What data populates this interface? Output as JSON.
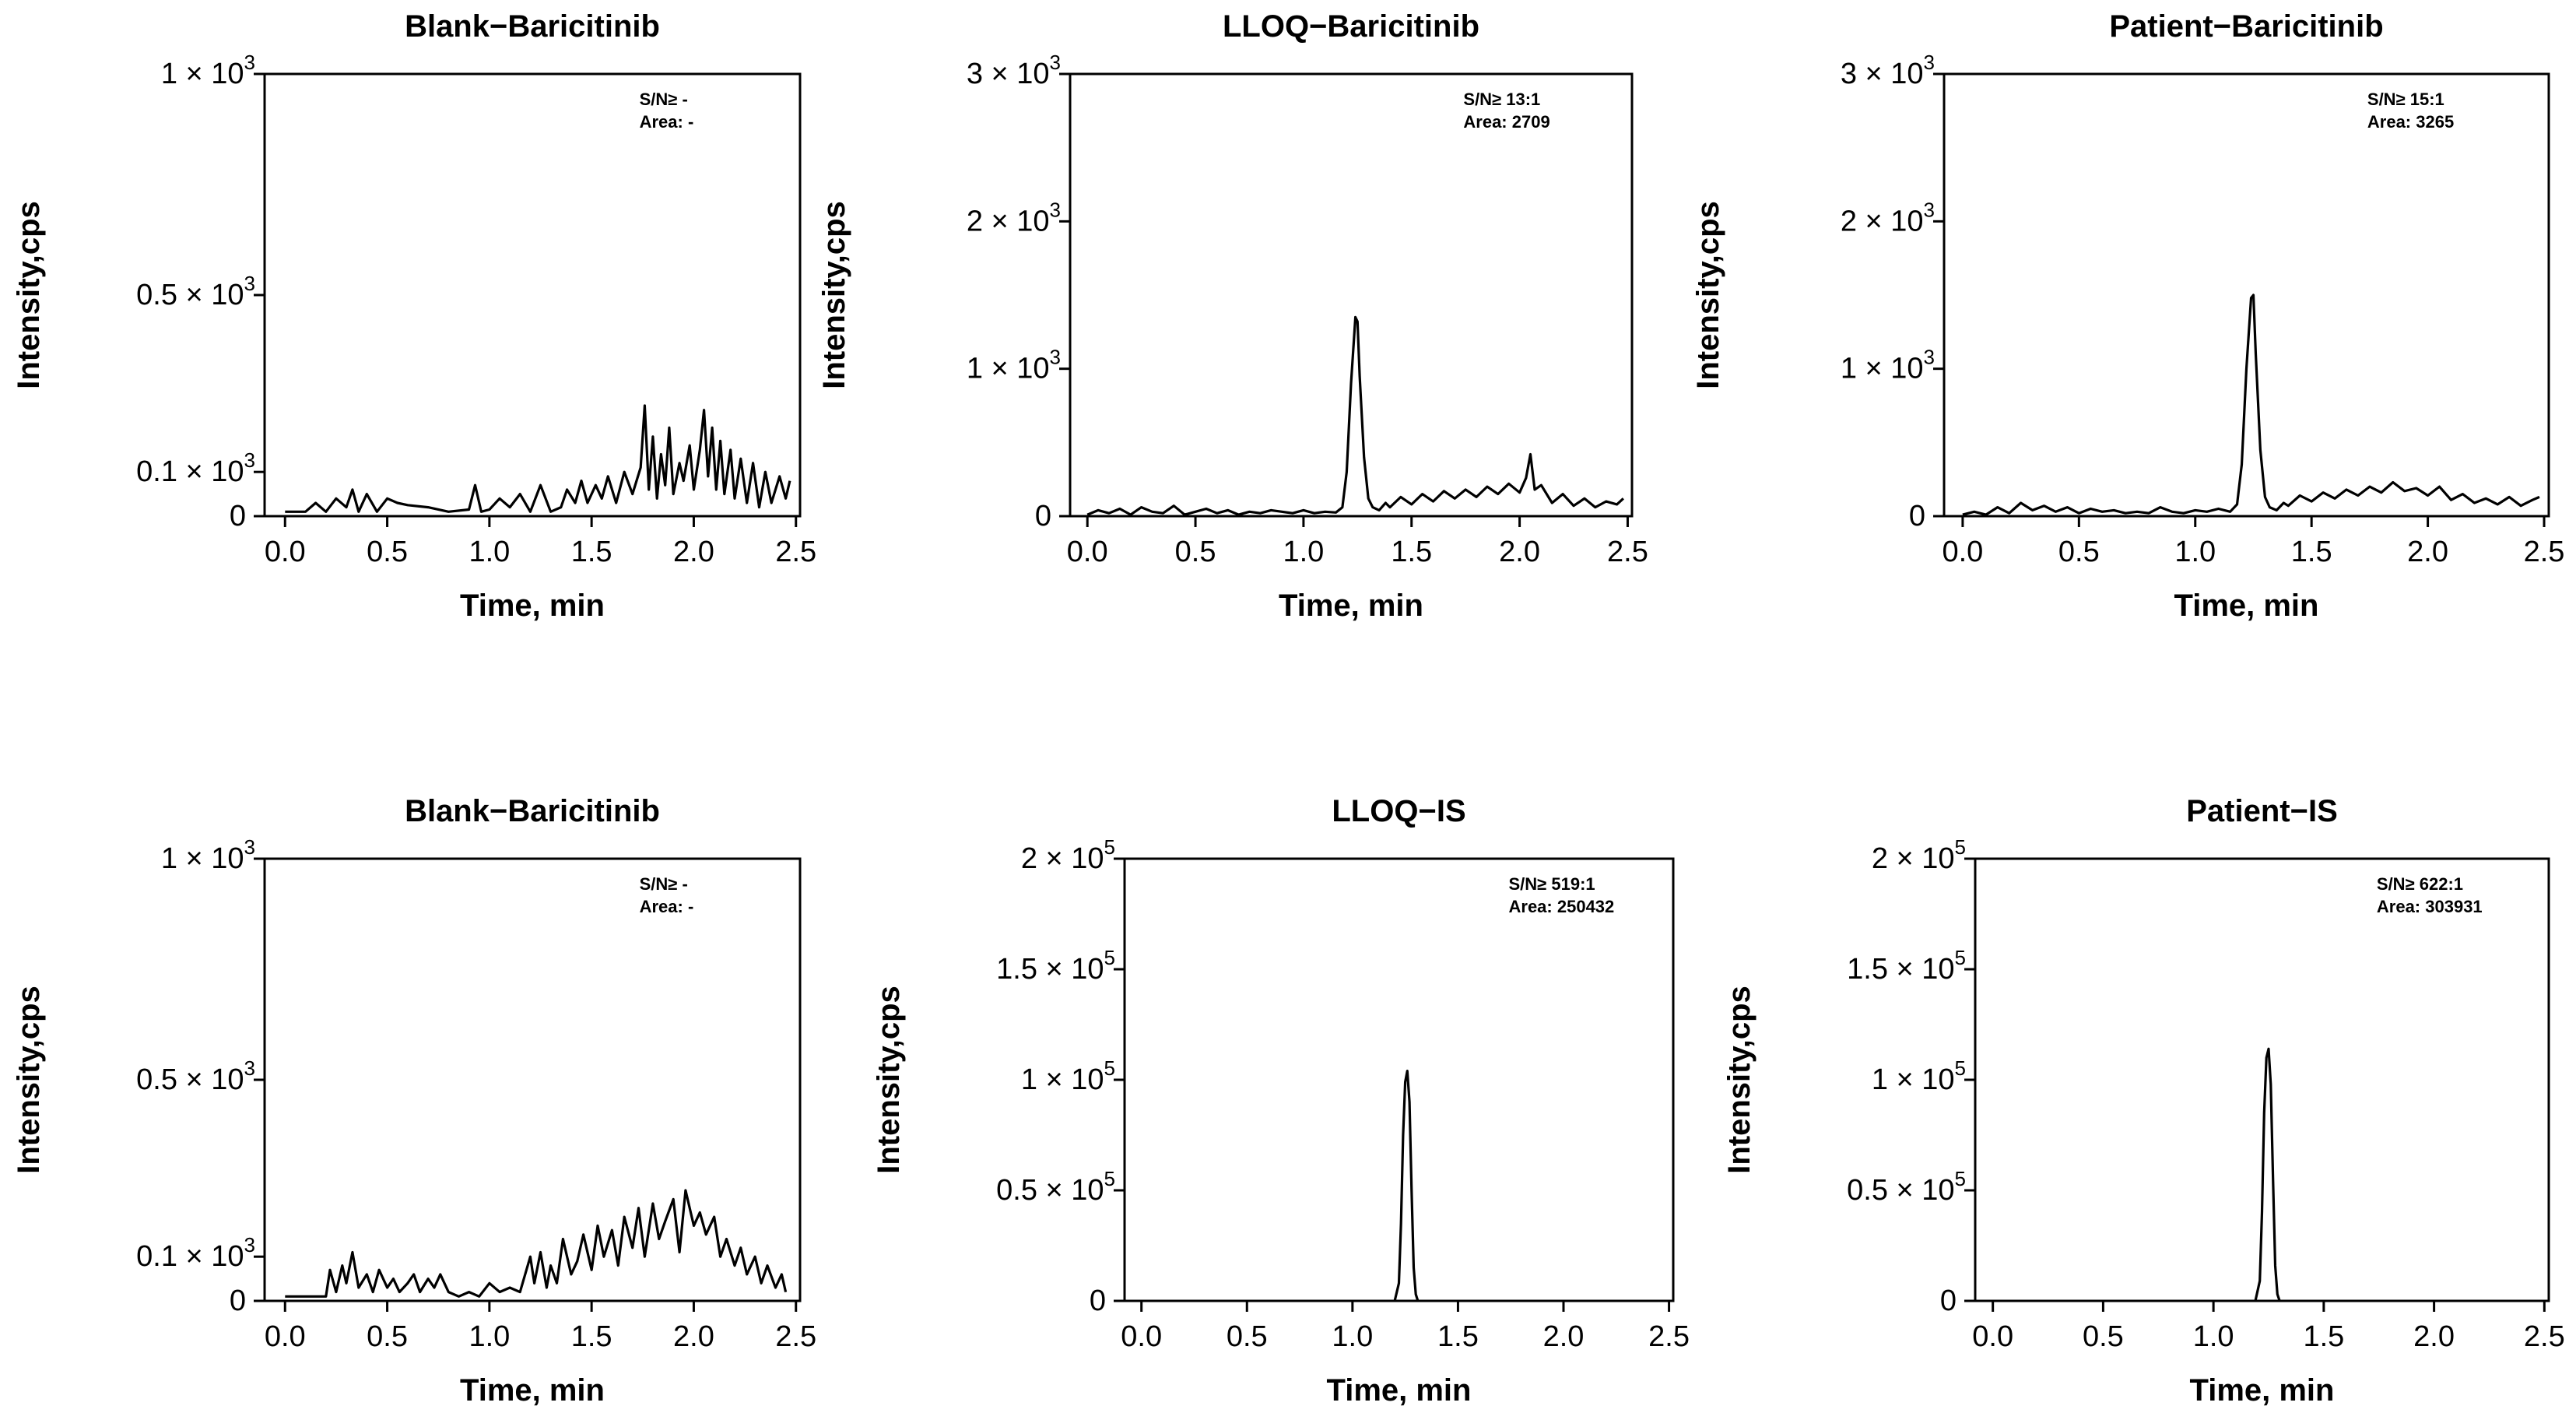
{
  "chart_data": [
    {
      "type": "line",
      "title": "Blank−Baricitinib",
      "xlabel": "Time, min",
      "ylabel": "Intensity,cps",
      "xlim": [
        -0.1,
        2.52
      ],
      "ylim": [
        0,
        1000
      ],
      "xticks": [
        {
          "value": 0.0,
          "label": "0.0"
        },
        {
          "value": 0.5,
          "label": "0.5"
        },
        {
          "value": 1.0,
          "label": "1.0"
        },
        {
          "value": 1.5,
          "label": "1.5"
        },
        {
          "value": 2.0,
          "label": "2.0"
        },
        {
          "value": 2.5,
          "label": "2.5"
        }
      ],
      "yticks": [
        {
          "value": 0,
          "mant": "0",
          "exp": ""
        },
        {
          "value": 100,
          "mant": "0.1 × 10",
          "exp": "3"
        },
        {
          "value": 500,
          "mant": "0.5 × 10",
          "exp": "3"
        },
        {
          "value": 1000,
          "mant": "1 × 10",
          "exp": "3"
        }
      ],
      "annotations": [
        "S/N≥ -",
        "Area: -"
      ],
      "series": [
        {
          "x": [
            0.0,
            0.1,
            0.15,
            0.2,
            0.25,
            0.3,
            0.33,
            0.36,
            0.4,
            0.45,
            0.5,
            0.55,
            0.6,
            0.7,
            0.8,
            0.9,
            0.93,
            0.96,
            1.0,
            1.05,
            1.1,
            1.15,
            1.2,
            1.25,
            1.3,
            1.35,
            1.38,
            1.42,
            1.45,
            1.48,
            1.52,
            1.55,
            1.58,
            1.62,
            1.66,
            1.7,
            1.74,
            1.76,
            1.78,
            1.8,
            1.82,
            1.84,
            1.86,
            1.88,
            1.9,
            1.93,
            1.95,
            1.98,
            2.0,
            2.03,
            2.05,
            2.07,
            2.09,
            2.11,
            2.13,
            2.15,
            2.18,
            2.2,
            2.23,
            2.26,
            2.29,
            2.32,
            2.35,
            2.38,
            2.42,
            2.45,
            2.47
          ],
          "y": [
            10,
            10,
            30,
            10,
            40,
            20,
            60,
            10,
            50,
            10,
            40,
            30,
            25,
            20,
            10,
            15,
            70,
            10,
            15,
            40,
            20,
            50,
            10,
            70,
            10,
            20,
            60,
            30,
            80,
            30,
            70,
            40,
            90,
            30,
            100,
            50,
            110,
            250,
            60,
            180,
            40,
            140,
            70,
            200,
            50,
            120,
            80,
            160,
            60,
            150,
            240,
            90,
            200,
            60,
            170,
            50,
            150,
            40,
            130,
            30,
            120,
            20,
            100,
            30,
            90,
            40,
            80
          ]
        }
      ]
    },
    {
      "type": "line",
      "title": "LLOQ−Baricitinib",
      "xlabel": "Time, min",
      "ylabel": "Intensity,cps",
      "xlim": [
        -0.08,
        2.52
      ],
      "ylim": [
        0,
        3000
      ],
      "xticks": [
        {
          "value": 0.0,
          "label": "0.0"
        },
        {
          "value": 0.5,
          "label": "0.5"
        },
        {
          "value": 1.0,
          "label": "1.0"
        },
        {
          "value": 1.5,
          "label": "1.5"
        },
        {
          "value": 2.0,
          "label": "2.0"
        },
        {
          "value": 2.5,
          "label": "2.5"
        }
      ],
      "yticks": [
        {
          "value": 0,
          "mant": "0",
          "exp": ""
        },
        {
          "value": 1000,
          "mant": "1 × 10",
          "exp": "3"
        },
        {
          "value": 2000,
          "mant": "2 × 10",
          "exp": "3"
        },
        {
          "value": 3000,
          "mant": "3 × 10",
          "exp": "3"
        }
      ],
      "annotations": [
        "S/N≥ 13:1",
        "Area: 2709"
      ],
      "series": [
        {
          "x": [
            0.0,
            0.05,
            0.1,
            0.15,
            0.2,
            0.25,
            0.3,
            0.35,
            0.4,
            0.45,
            0.5,
            0.55,
            0.6,
            0.65,
            0.7,
            0.75,
            0.8,
            0.85,
            0.9,
            0.95,
            1.0,
            1.05,
            1.1,
            1.15,
            1.18,
            1.2,
            1.22,
            1.24,
            1.25,
            1.26,
            1.28,
            1.3,
            1.32,
            1.35,
            1.38,
            1.4,
            1.45,
            1.5,
            1.55,
            1.6,
            1.65,
            1.7,
            1.75,
            1.8,
            1.85,
            1.9,
            1.95,
            2.0,
            2.03,
            2.05,
            2.07,
            2.1,
            2.15,
            2.2,
            2.25,
            2.3,
            2.35,
            2.4,
            2.45,
            2.48
          ],
          "y": [
            10,
            40,
            20,
            50,
            10,
            60,
            30,
            20,
            70,
            10,
            30,
            50,
            20,
            40,
            10,
            30,
            20,
            40,
            30,
            20,
            40,
            20,
            30,
            25,
            60,
            300,
            900,
            1350,
            1320,
            950,
            400,
            120,
            60,
            40,
            90,
            60,
            130,
            80,
            150,
            100,
            170,
            120,
            180,
            130,
            200,
            150,
            220,
            160,
            260,
            420,
            180,
            210,
            90,
            150,
            70,
            120,
            60,
            100,
            80,
            120
          ]
        }
      ]
    },
    {
      "type": "line",
      "title": "Patient−Baricitinib",
      "xlabel": "Time, min",
      "ylabel": "Intensity,cps",
      "xlim": [
        -0.08,
        2.52
      ],
      "ylim": [
        0,
        3000
      ],
      "xticks": [
        {
          "value": 0.0,
          "label": "0.0"
        },
        {
          "value": 0.5,
          "label": "0.5"
        },
        {
          "value": 1.0,
          "label": "1.0"
        },
        {
          "value": 1.5,
          "label": "1.5"
        },
        {
          "value": 2.0,
          "label": "2.0"
        },
        {
          "value": 2.5,
          "label": "2.5"
        }
      ],
      "yticks": [
        {
          "value": 0,
          "mant": "0",
          "exp": ""
        },
        {
          "value": 1000,
          "mant": "1 × 10",
          "exp": "3"
        },
        {
          "value": 2000,
          "mant": "2 × 10",
          "exp": "3"
        },
        {
          "value": 3000,
          "mant": "3 × 10",
          "exp": "3"
        }
      ],
      "annotations": [
        "S/N≥ 15:1",
        "Area: 3265"
      ],
      "series": [
        {
          "x": [
            0.0,
            0.05,
            0.1,
            0.15,
            0.2,
            0.25,
            0.3,
            0.35,
            0.4,
            0.45,
            0.5,
            0.55,
            0.6,
            0.65,
            0.7,
            0.75,
            0.8,
            0.85,
            0.9,
            0.95,
            1.0,
            1.05,
            1.1,
            1.15,
            1.18,
            1.2,
            1.22,
            1.24,
            1.25,
            1.26,
            1.28,
            1.3,
            1.32,
            1.35,
            1.38,
            1.4,
            1.45,
            1.5,
            1.55,
            1.6,
            1.65,
            1.7,
            1.75,
            1.8,
            1.85,
            1.9,
            1.95,
            2.0,
            2.05,
            2.1,
            2.15,
            2.2,
            2.25,
            2.3,
            2.35,
            2.4,
            2.45,
            2.48
          ],
          "y": [
            10,
            30,
            10,
            60,
            20,
            90,
            40,
            70,
            30,
            60,
            20,
            50,
            30,
            40,
            20,
            30,
            20,
            60,
            30,
            20,
            40,
            30,
            50,
            30,
            80,
            350,
            1000,
            1480,
            1500,
            1100,
            450,
            130,
            60,
            40,
            90,
            70,
            140,
            100,
            160,
            120,
            180,
            140,
            200,
            160,
            230,
            170,
            190,
            140,
            200,
            110,
            150,
            90,
            120,
            80,
            130,
            70,
            110,
            130
          ]
        }
      ]
    },
    {
      "type": "line",
      "title": "Blank−Baricitinib",
      "xlabel": "Time, min",
      "ylabel": "Intensity,cps",
      "xlim": [
        -0.1,
        2.52
      ],
      "ylim": [
        0,
        1000
      ],
      "xticks": [
        {
          "value": 0.0,
          "label": "0.0"
        },
        {
          "value": 0.5,
          "label": "0.5"
        },
        {
          "value": 1.0,
          "label": "1.0"
        },
        {
          "value": 1.5,
          "label": "1.5"
        },
        {
          "value": 2.0,
          "label": "2.0"
        },
        {
          "value": 2.5,
          "label": "2.5"
        }
      ],
      "yticks": [
        {
          "value": 0,
          "mant": "0",
          "exp": ""
        },
        {
          "value": 100,
          "mant": "0.1 × 10",
          "exp": "3"
        },
        {
          "value": 500,
          "mant": "0.5 × 10",
          "exp": "3"
        },
        {
          "value": 1000,
          "mant": "1 × 10",
          "exp": "3"
        }
      ],
      "annotations": [
        "S/N≥ -",
        "Area: -"
      ],
      "series": [
        {
          "x": [
            0.0,
            0.1,
            0.2,
            0.22,
            0.25,
            0.28,
            0.3,
            0.33,
            0.36,
            0.4,
            0.43,
            0.46,
            0.5,
            0.53,
            0.56,
            0.6,
            0.63,
            0.66,
            0.7,
            0.73,
            0.76,
            0.8,
            0.85,
            0.9,
            0.95,
            1.0,
            1.05,
            1.1,
            1.15,
            1.2,
            1.22,
            1.25,
            1.28,
            1.3,
            1.33,
            1.36,
            1.4,
            1.43,
            1.46,
            1.5,
            1.53,
            1.56,
            1.6,
            1.63,
            1.66,
            1.7,
            1.73,
            1.76,
            1.8,
            1.83,
            1.86,
            1.9,
            1.93,
            1.96,
            2.0,
            2.03,
            2.06,
            2.1,
            2.13,
            2.16,
            2.2,
            2.23,
            2.26,
            2.3,
            2.33,
            2.36,
            2.4,
            2.43,
            2.45
          ],
          "y": [
            10,
            10,
            10,
            70,
            20,
            80,
            40,
            110,
            30,
            60,
            20,
            70,
            30,
            50,
            20,
            40,
            60,
            20,
            50,
            30,
            60,
            20,
            10,
            20,
            10,
            40,
            20,
            30,
            20,
            100,
            40,
            110,
            30,
            80,
            40,
            140,
            60,
            90,
            150,
            70,
            170,
            100,
            160,
            80,
            190,
            120,
            210,
            100,
            220,
            140,
            180,
            230,
            110,
            250,
            170,
            200,
            150,
            190,
            100,
            140,
            80,
            120,
            60,
            100,
            40,
            80,
            30,
            60,
            20
          ]
        }
      ]
    },
    {
      "type": "line",
      "title": "LLOQ−IS",
      "xlabel": "Time, min",
      "ylabel": "Intensity,cps",
      "xlim": [
        -0.08,
        2.52
      ],
      "ylim": [
        0,
        200000
      ],
      "xticks": [
        {
          "value": 0.0,
          "label": "0.0"
        },
        {
          "value": 0.5,
          "label": "0.5"
        },
        {
          "value": 1.0,
          "label": "1.0"
        },
        {
          "value": 1.5,
          "label": "1.5"
        },
        {
          "value": 2.0,
          "label": "2.0"
        },
        {
          "value": 2.5,
          "label": "2.5"
        }
      ],
      "yticks": [
        {
          "value": 0,
          "mant": "0",
          "exp": ""
        },
        {
          "value": 50000,
          "mant": "0.5 × 10",
          "exp": "5"
        },
        {
          "value": 100000,
          "mant": "1 × 10",
          "exp": "5"
        },
        {
          "value": 150000,
          "mant": "1.5 × 10",
          "exp": "5"
        },
        {
          "value": 200000,
          "mant": "2 × 10",
          "exp": "5"
        }
      ],
      "annotations": [
        "S/N≥ 519:1",
        "Area: 250432"
      ],
      "series": [
        {
          "x": [
            1.2,
            1.22,
            1.23,
            1.24,
            1.25,
            1.26,
            1.27,
            1.28,
            1.29,
            1.3,
            1.31
          ],
          "y": [
            0,
            8000,
            35000,
            75000,
            99000,
            104000,
            90000,
            50000,
            15000,
            3000,
            0
          ]
        }
      ]
    },
    {
      "type": "line",
      "title": "Patient−IS",
      "xlabel": "Time, min",
      "ylabel": "Intensity,cps",
      "xlim": [
        -0.08,
        2.52
      ],
      "ylim": [
        0,
        200000
      ],
      "xticks": [
        {
          "value": 0.0,
          "label": "0.0"
        },
        {
          "value": 0.5,
          "label": "0.5"
        },
        {
          "value": 1.0,
          "label": "1.0"
        },
        {
          "value": 1.5,
          "label": "1.5"
        },
        {
          "value": 2.0,
          "label": "2.0"
        },
        {
          "value": 2.5,
          "label": "2.5"
        }
      ],
      "yticks": [
        {
          "value": 0,
          "mant": "0",
          "exp": ""
        },
        {
          "value": 50000,
          "mant": "0.5 × 10",
          "exp": "5"
        },
        {
          "value": 100000,
          "mant": "1 × 10",
          "exp": "5"
        },
        {
          "value": 150000,
          "mant": "1.5 × 10",
          "exp": "5"
        },
        {
          "value": 200000,
          "mant": "2 × 10",
          "exp": "5"
        }
      ],
      "annotations": [
        "S/N≥ 622:1",
        "Area: 303931"
      ],
      "series": [
        {
          "x": [
            1.19,
            1.21,
            1.22,
            1.23,
            1.24,
            1.25,
            1.26,
            1.27,
            1.28,
            1.29,
            1.3
          ],
          "y": [
            0,
            9000,
            40000,
            85000,
            110000,
            114000,
            98000,
            55000,
            16000,
            3000,
            0
          ]
        }
      ]
    }
  ]
}
